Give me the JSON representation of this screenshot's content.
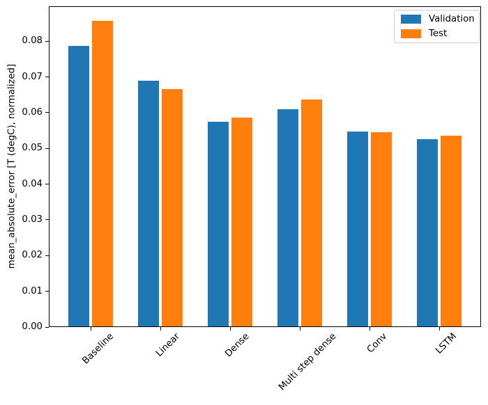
{
  "chart_data": {
    "type": "bar",
    "title": "",
    "categories": [
      "Baseline",
      "Linear",
      "Dense",
      "Multi step dense",
      "Conv",
      "LSTM"
    ],
    "series": [
      {
        "name": "Validation",
        "color": "#1f77b4",
        "values": [
          0.0785,
          0.0688,
          0.0573,
          0.0607,
          0.0545,
          0.0524
        ]
      },
      {
        "name": "Test",
        "color": "#ff7f0e",
        "values": [
          0.0855,
          0.0665,
          0.0584,
          0.0635,
          0.0543,
          0.0533
        ]
      }
    ],
    "xlabel": "",
    "ylabel": "mean_absolute_error [T (degC), normalized]",
    "ylim": [
      0,
      0.0898
    ],
    "xlim": [
      -0.6,
      5.6
    ],
    "yticks": [
      0,
      0.01,
      0.02,
      0.03,
      0.04,
      0.05,
      0.06,
      0.07,
      0.08
    ],
    "ytick_labels": [
      "0.00",
      "0.01",
      "0.02",
      "0.03",
      "0.04",
      "0.05",
      "0.06",
      "0.07",
      "0.08"
    ],
    "xtick_rotation_deg": 45,
    "grid": false,
    "legend": {
      "position": "upper right",
      "entries": [
        "Validation",
        "Test"
      ]
    },
    "axis_color": "#000000",
    "background": "#ffffff"
  }
}
